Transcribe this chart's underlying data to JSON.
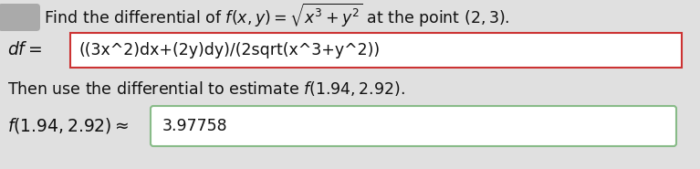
{
  "bg_color": "#e0e0e0",
  "title_line1": "Find the differential of $f(x, y) = \\sqrt{x^3 + y^2}$ at the point $(2, 3)$.",
  "df_label": "$df=$",
  "df_box_text": "((3x^2)dx+(2y)dy)/(2sqrt(x^3+y^2))",
  "df_box_border": "#cc3333",
  "middle_line": "Then use the differential to estimate $f(1.94, 2.92)$.",
  "result_label": "$f(1.94, 2.92) \\approx$",
  "result_box_text": "3.97758",
  "result_box_border": "#88bb88",
  "text_color": "#111111",
  "font_size": 12.5,
  "fig_width": 7.67,
  "fig_height": 1.85,
  "dpi": 100
}
